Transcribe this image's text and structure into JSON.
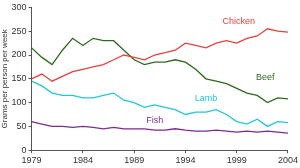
{
  "chart_data": {
    "type": "line",
    "y_label": "Grams per person per week",
    "x": [
      1979,
      1980,
      1981,
      1982,
      1983,
      1984,
      1985,
      1986,
      1987,
      1988,
      1989,
      1990,
      1991,
      1992,
      1993,
      1994,
      1995,
      1996,
      1997,
      1998,
      1999,
      2000,
      2001,
      2002,
      2003,
      2004
    ],
    "series": [
      {
        "name": "Chicken",
        "color": "#e8413c",
        "values": [
          150,
          160,
          145,
          155,
          165,
          170,
          175,
          180,
          190,
          200,
          195,
          190,
          200,
          205,
          210,
          225,
          220,
          215,
          225,
          230,
          225,
          235,
          240,
          255,
          250,
          248
        ]
      },
      {
        "name": "Beef",
        "color": "#2e6b1f",
        "values": [
          215,
          195,
          180,
          210,
          235,
          220,
          235,
          230,
          230,
          210,
          190,
          180,
          185,
          185,
          190,
          185,
          170,
          150,
          145,
          140,
          130,
          120,
          115,
          100,
          110,
          108
        ]
      },
      {
        "name": "Lamb",
        "color": "#22c6d9",
        "values": [
          145,
          135,
          120,
          115,
          115,
          110,
          110,
          115,
          120,
          105,
          100,
          90,
          95,
          90,
          85,
          75,
          80,
          80,
          85,
          75,
          60,
          55,
          65,
          50,
          60,
          58
        ]
      },
      {
        "name": "Fish",
        "color": "#7a2d8f",
        "values": [
          60,
          55,
          50,
          50,
          48,
          50,
          48,
          45,
          48,
          45,
          45,
          45,
          42,
          42,
          45,
          42,
          40,
          40,
          42,
          40,
          38,
          40,
          38,
          40,
          38,
          36
        ]
      }
    ],
    "xlim": [
      1979,
      2004
    ],
    "xticks": [
      1979,
      1984,
      1989,
      1994,
      1999,
      2004
    ],
    "ylim": [
      0,
      300
    ],
    "yticks": [
      0,
      50,
      100,
      150,
      200,
      250,
      300
    ],
    "grid": false
  }
}
